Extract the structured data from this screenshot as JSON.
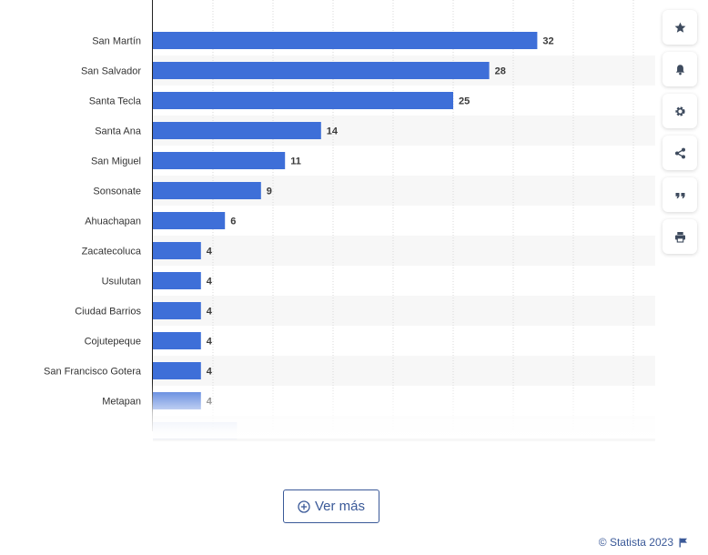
{
  "chart_data": {
    "type": "bar",
    "orientation": "horizontal",
    "categories": [
      "San Martín",
      "San Salvador",
      "Santa Tecla",
      "Santa Ana",
      "San Miguel",
      "Sonsonate",
      "Ahuachapan",
      "Zacatecoluca",
      "Usulutan",
      "Ciudad Barrios",
      "Cojutepeque",
      "San Francisco Gotera",
      "Metapan"
    ],
    "values": [
      32,
      28,
      25,
      14,
      11,
      9,
      6,
      4,
      4,
      4,
      4,
      4,
      4
    ],
    "partial_next_value": 7,
    "xlim": [
      0,
      40
    ],
    "grid": true,
    "data_labels": true,
    "bar_color": "#3e6fd8"
  },
  "toolbar": {
    "buttons": [
      {
        "name": "favorite-button",
        "icon": "star-icon"
      },
      {
        "name": "notification-button",
        "icon": "bell-icon"
      },
      {
        "name": "settings-button",
        "icon": "gear-icon"
      },
      {
        "name": "share-button",
        "icon": "share-icon"
      },
      {
        "name": "cite-button",
        "icon": "quote-icon"
      },
      {
        "name": "print-button",
        "icon": "print-icon"
      }
    ],
    "icon_color": "#3e4b5e"
  },
  "more_button": {
    "label": "Ver más"
  },
  "credit": {
    "text": "© Statista 2023"
  },
  "colors": {
    "accent": "#3a5998",
    "label_text": "#333333",
    "value_text": "#3a3a3a",
    "grid": "#d8d8d8",
    "band": "#f7f7f7"
  }
}
